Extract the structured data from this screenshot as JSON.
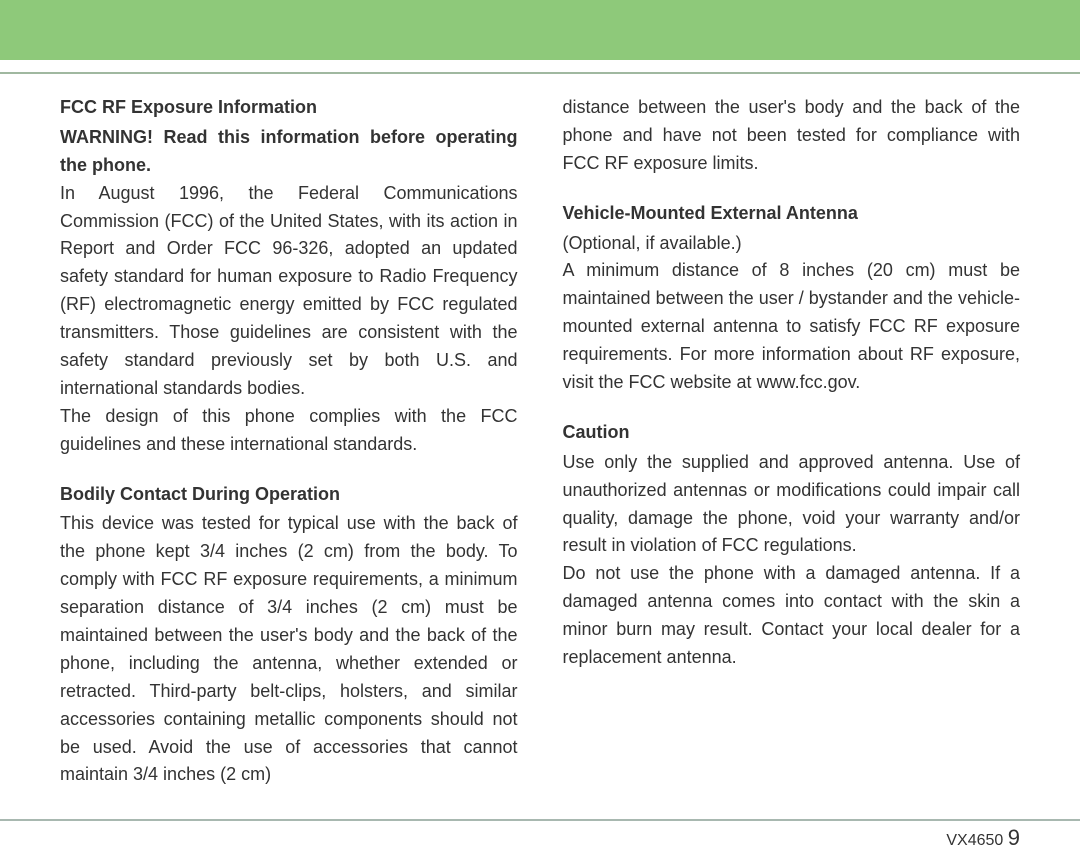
{
  "colors": {
    "band": "#8ec97a",
    "rule": "#a0b8a0",
    "text": "#333333",
    "bg": "#ffffff"
  },
  "left": {
    "h1": "FCC RF Exposure Information",
    "warn": "WARNING! Read this information before operating the phone.",
    "p1": "In August 1996, the Federal Communications Commission (FCC) of the United States, with its action in Report and Order FCC 96-326, adopted an updated safety standard for human exposure to Radio Frequency (RF) electromagnetic energy emitted by FCC regulated transmitters. Those guidelines are consistent with the safety standard previously set by both U.S. and international standards bodies.",
    "p2": "The design of this phone complies with the FCC guidelines and these international standards.",
    "h2": "Bodily Contact During Operation",
    "p3": "This device was tested for typical use with the back of the phone kept 3/4 inches (2 cm) from the body. To comply with FCC RF exposure requirements, a minimum separation distance of 3/4 inches (2 cm) must be maintained between the user's body and the back of the phone, including the antenna, whether extended or retracted. Third-party belt-clips, holsters, and similar accessories containing metallic components should not be used. Avoid the use of accessories that cannot maintain 3/4 inches (2 cm)"
  },
  "right": {
    "p1": "distance between the user's body and the back of the phone and have not been tested for compliance with FCC RF exposure limits.",
    "h1": "Vehicle-Mounted External Antenna",
    "p2a": "(Optional, if available.)",
    "p2b": "A minimum distance of 8 inches (20 cm) must be maintained between the user / bystander and the vehicle-mounted external antenna to satisfy FCC RF exposure requirements. For more information about RF exposure, visit the FCC website at www.fcc.gov.",
    "h2": "Caution",
    "p3": "Use only the supplied and approved antenna. Use of unauthorized antennas or modifications could impair call quality, damage the phone, void your warranty and/or result in violation of FCC regulations.",
    "p4": "Do not use the phone with a damaged antenna. If a damaged antenna comes into contact with the skin a minor burn may result. Contact your local dealer for a replacement antenna."
  },
  "footer": {
    "model": "VX4650",
    "page": "9"
  }
}
